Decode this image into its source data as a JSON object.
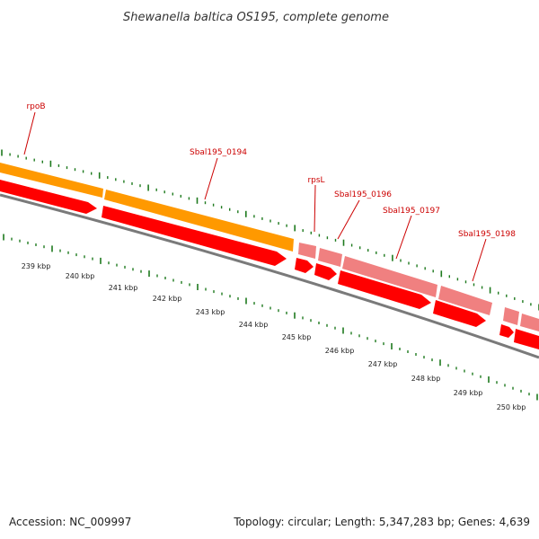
{
  "title": "Shewanella baltica OS195, complete genome",
  "footer": {
    "accession": "Accession: NC_009997",
    "summary": "Topology: circular; Length: 5,347,283 bp; Genes: 4,639"
  },
  "colors": {
    "background": "#ffffff",
    "gene_label": "#cc0000",
    "tick": "#1e7a1e",
    "backbone": "#7a7a7a",
    "orange_feature": "#ff9900",
    "red_feature": "#ff0000",
    "pink_feature": "#f08080"
  },
  "gene_labels": [
    "rpoB",
    "Sbal195_0194",
    "rpsL",
    "Sbal195_0196",
    "Sbal195_0197",
    "Sbal195_0198"
  ],
  "kbp_labels": [
    "239 kbp",
    "240 kbp",
    "241 kbp",
    "242 kbp",
    "243 kbp",
    "244 kbp",
    "245 kbp",
    "246 kbp",
    "247 kbp",
    "248 kbp",
    "249 kbp",
    "250 kbp"
  ]
}
